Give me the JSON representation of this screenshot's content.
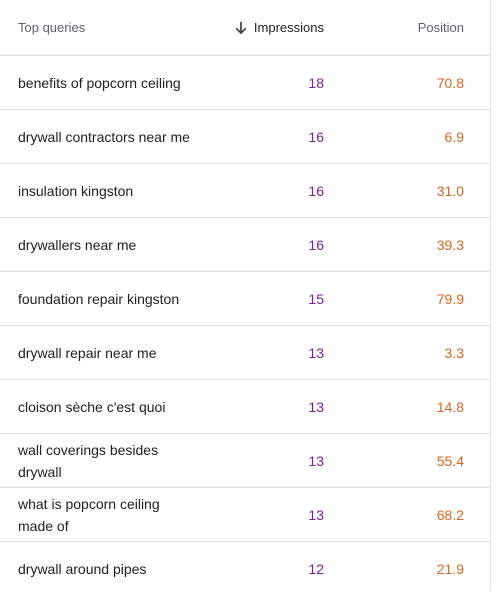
{
  "header": {
    "query_label": "Top queries",
    "impressions_label": "Impressions",
    "position_label": "Position",
    "sort_icon": "arrow-down-icon"
  },
  "rows": [
    {
      "query": "benefits of popcorn ceiling",
      "impressions": "18",
      "position": "70.8"
    },
    {
      "query": "drywall contractors near me",
      "impressions": "16",
      "position": "6.9"
    },
    {
      "query": "insulation kingston",
      "impressions": "16",
      "position": "31.0"
    },
    {
      "query": "drywallers near me",
      "impressions": "16",
      "position": "39.3"
    },
    {
      "query": "foundation repair kingston",
      "impressions": "15",
      "position": "79.9"
    },
    {
      "query": "drywall repair near me",
      "impressions": "13",
      "position": "3.3"
    },
    {
      "query": "cloison sèche c'est quoi",
      "impressions": "13",
      "position": "14.8"
    },
    {
      "query": "wall coverings besides drywall",
      "impressions": "13",
      "position": "55.4"
    },
    {
      "query": "what is popcorn ceiling made of",
      "impressions": "13",
      "position": "68.2"
    },
    {
      "query": "drywall around pipes",
      "impressions": "12",
      "position": "21.9"
    }
  ],
  "colors": {
    "impressions": "#7b1fa2",
    "position": "#d9661f",
    "text": "#202124",
    "header_text": "#5f6368",
    "divider": "#e0e0e0"
  }
}
